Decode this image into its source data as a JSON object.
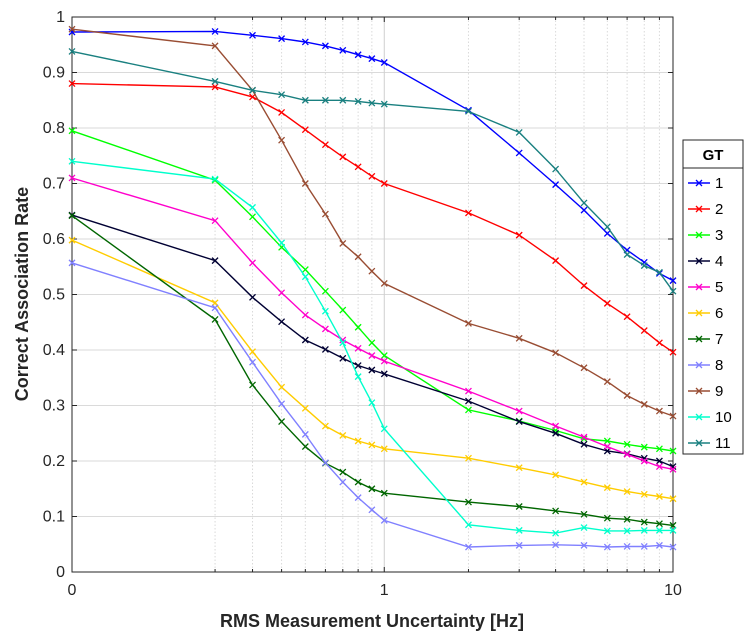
{
  "chart_data": {
    "type": "line",
    "xlabel": "RMS Measurement Uncertainty [Hz]",
    "ylabel": "Correct Association Rate",
    "xscale": "symlog",
    "xlim": [
      0,
      10
    ],
    "ylim": [
      0,
      1
    ],
    "x_tick_labels": [
      "0",
      "1",
      "10"
    ],
    "y_tick_labels": [
      "0",
      "0.1",
      "0.2",
      "0.3",
      "0.4",
      "0.5",
      "0.6",
      "0.7",
      "0.8",
      "0.9",
      "1"
    ],
    "grid": true,
    "legend_title": "GT",
    "legend_position": "right",
    "marker": "x",
    "x": [
      0,
      0.2,
      0.3,
      0.4,
      0.5,
      0.6,
      0.7,
      0.8,
      0.9,
      1,
      2,
      3,
      4,
      5,
      6,
      7,
      8,
      9,
      10
    ],
    "series": [
      {
        "name": "1",
        "color": "#0000ff",
        "values": [
          0.973,
          0.974,
          0.967,
          0.961,
          0.955,
          0.948,
          0.94,
          0.932,
          0.925,
          0.918,
          0.832,
          0.755,
          0.698,
          0.652,
          0.61,
          0.58,
          0.558,
          0.538,
          0.525
        ]
      },
      {
        "name": "2",
        "color": "#ff0000",
        "values": [
          0.88,
          0.874,
          0.856,
          0.828,
          0.797,
          0.77,
          0.748,
          0.73,
          0.713,
          0.7,
          0.647,
          0.607,
          0.561,
          0.516,
          0.484,
          0.46,
          0.435,
          0.413,
          0.396
        ]
      },
      {
        "name": "3",
        "color": "#00ff00",
        "values": [
          0.795,
          0.706,
          0.64,
          0.585,
          0.545,
          0.506,
          0.472,
          0.441,
          0.413,
          0.39,
          0.292,
          0.272,
          0.255,
          0.24,
          0.236,
          0.23,
          0.225,
          0.222,
          0.218
        ]
      },
      {
        "name": "4",
        "color": "#000033",
        "values": [
          0.643,
          0.561,
          0.495,
          0.451,
          0.418,
          0.401,
          0.385,
          0.372,
          0.364,
          0.357,
          0.308,
          0.271,
          0.25,
          0.23,
          0.218,
          0.213,
          0.205,
          0.2,
          0.19
        ]
      },
      {
        "name": "5",
        "color": "#ff00cc",
        "values": [
          0.71,
          0.633,
          0.557,
          0.503,
          0.463,
          0.438,
          0.418,
          0.403,
          0.39,
          0.38,
          0.326,
          0.29,
          0.263,
          0.243,
          0.226,
          0.212,
          0.2,
          0.19,
          0.185
        ]
      },
      {
        "name": "6",
        "color": "#ffcc00",
        "values": [
          0.598,
          0.485,
          0.397,
          0.333,
          0.295,
          0.263,
          0.246,
          0.236,
          0.229,
          0.222,
          0.205,
          0.188,
          0.175,
          0.162,
          0.152,
          0.145,
          0.14,
          0.136,
          0.132
        ]
      },
      {
        "name": "7",
        "color": "#006600",
        "values": [
          0.642,
          0.455,
          0.337,
          0.271,
          0.226,
          0.196,
          0.18,
          0.162,
          0.15,
          0.142,
          0.126,
          0.118,
          0.11,
          0.104,
          0.097,
          0.095,
          0.09,
          0.087,
          0.084
        ]
      },
      {
        "name": "8",
        "color": "#8080ff",
        "values": [
          0.557,
          0.476,
          0.378,
          0.303,
          0.248,
          0.197,
          0.162,
          0.134,
          0.112,
          0.093,
          0.045,
          0.048,
          0.049,
          0.048,
          0.045,
          0.046,
          0.046,
          0.048,
          0.045
        ]
      },
      {
        "name": "9",
        "color": "#994d33",
        "values": [
          0.978,
          0.948,
          0.868,
          0.778,
          0.7,
          0.645,
          0.592,
          0.568,
          0.542,
          0.52,
          0.448,
          0.421,
          0.395,
          0.368,
          0.343,
          0.318,
          0.302,
          0.29,
          0.281
        ]
      },
      {
        "name": "10",
        "color": "#00ffcc",
        "values": [
          0.74,
          0.708,
          0.657,
          0.593,
          0.532,
          0.47,
          0.413,
          0.352,
          0.305,
          0.258,
          0.085,
          0.075,
          0.07,
          0.08,
          0.074,
          0.074,
          0.075,
          0.075,
          0.075
        ]
      },
      {
        "name": "11",
        "color": "#1a8080",
        "values": [
          0.938,
          0.884,
          0.868,
          0.86,
          0.85,
          0.85,
          0.85,
          0.848,
          0.845,
          0.843,
          0.83,
          0.792,
          0.726,
          0.665,
          0.622,
          0.572,
          0.552,
          0.54,
          0.506
        ]
      }
    ]
  }
}
